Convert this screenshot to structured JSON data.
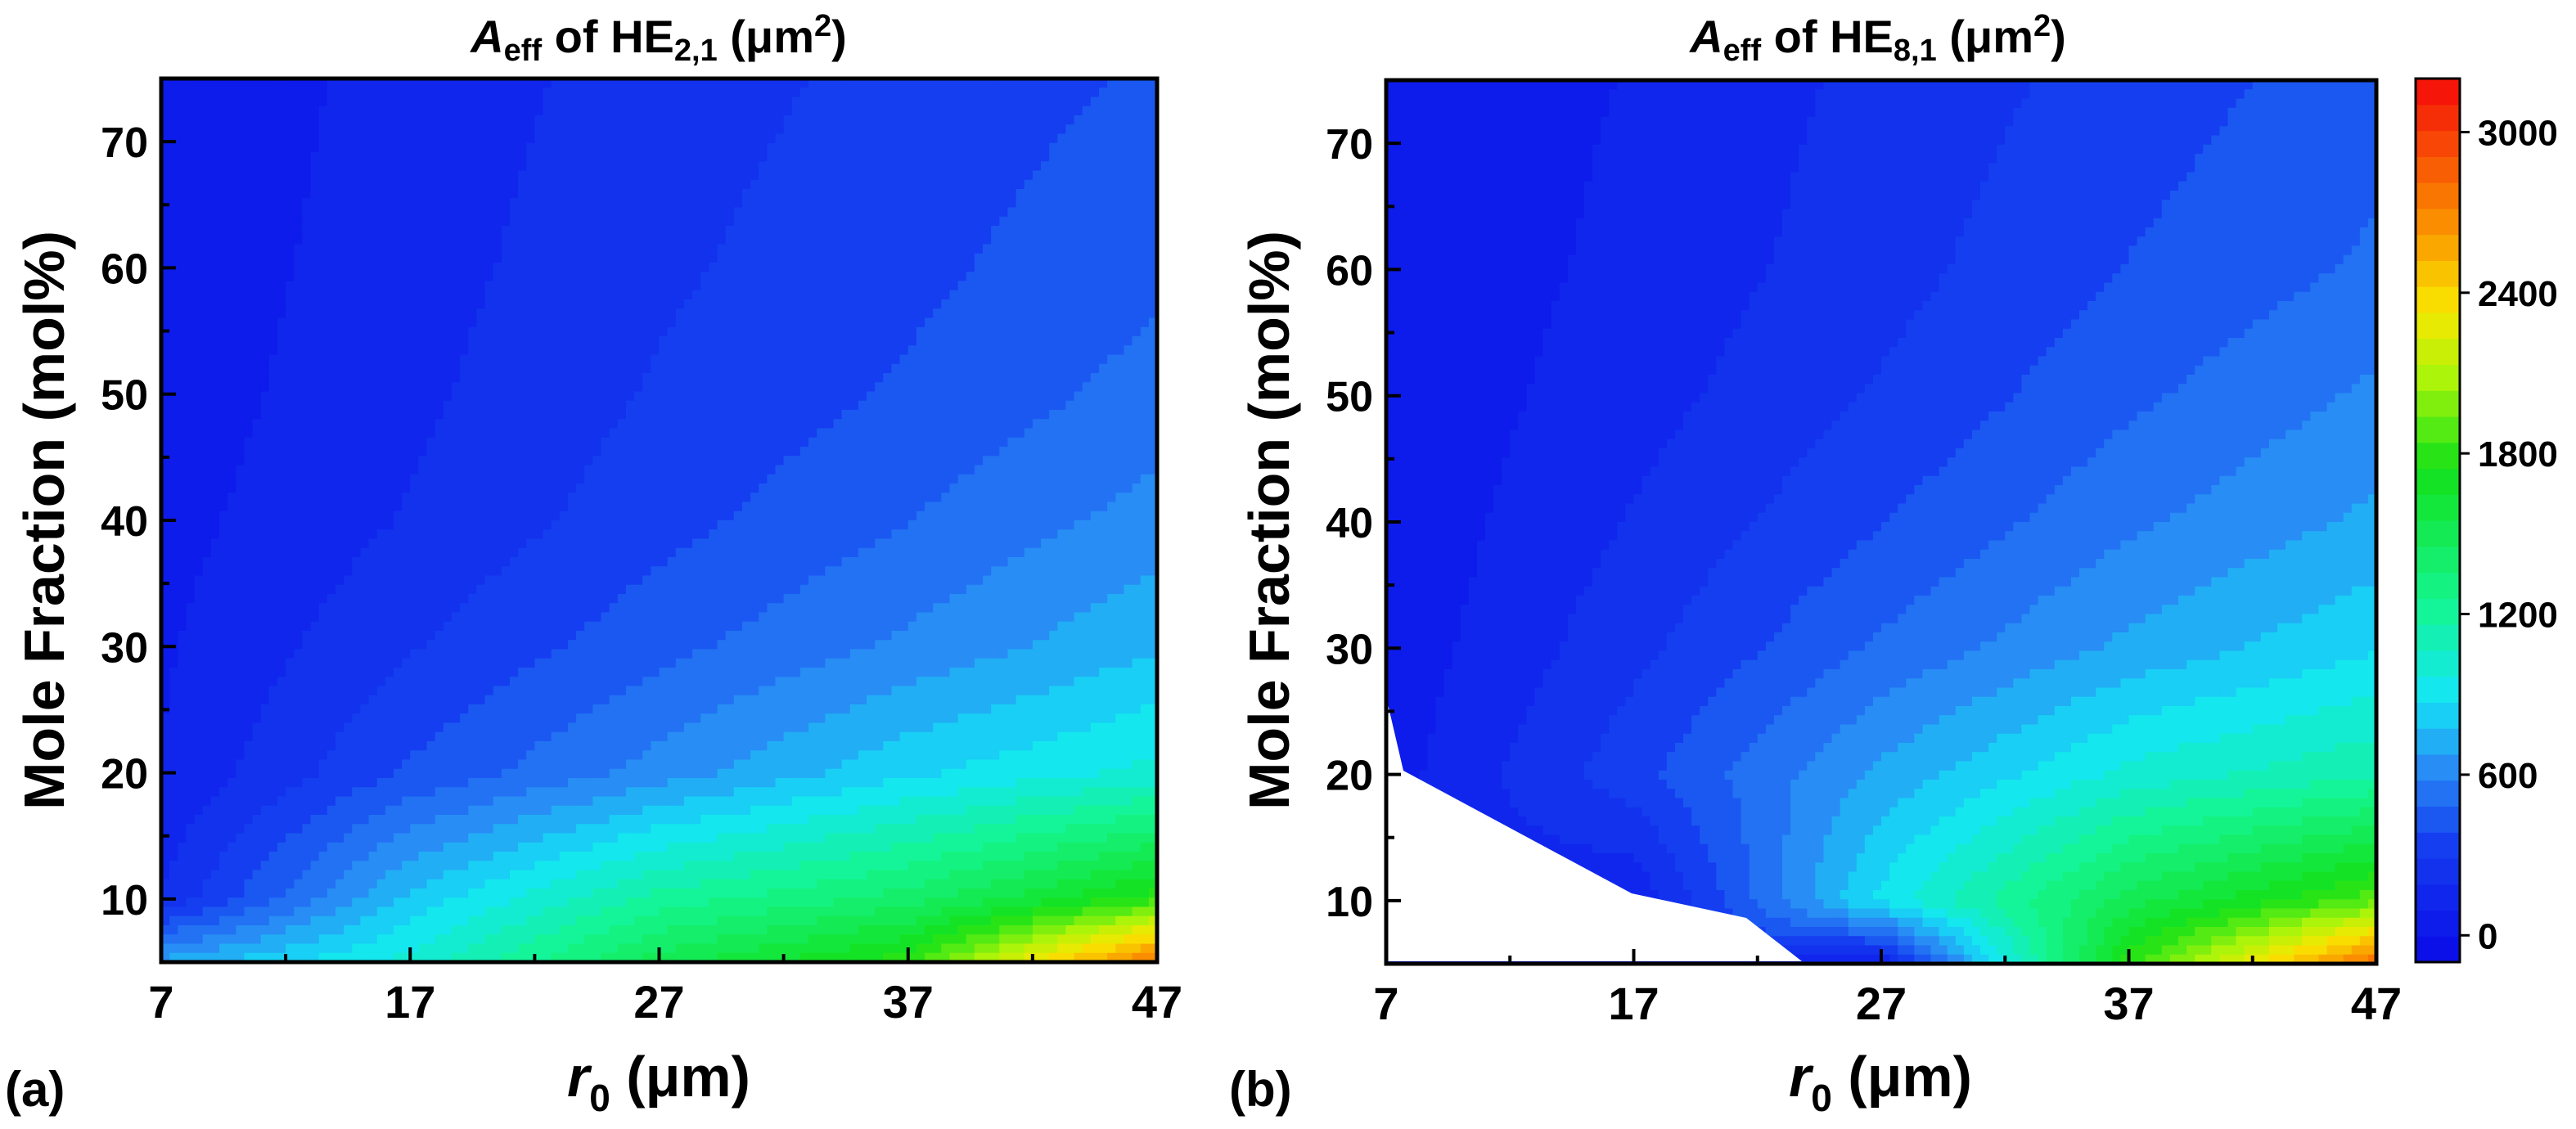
{
  "panels": [
    {
      "id": "a",
      "label": "(a)",
      "title": {
        "italic": "A",
        "sub": "eff",
        "mid": " of HE",
        "mode_sub": "2,1",
        "end": " (μm",
        "sup": "2",
        "close": ")"
      }
    },
    {
      "id": "b",
      "label": "(b)",
      "title": {
        "italic": "A",
        "sub": "eff",
        "mid": " of HE",
        "mode_sub": "8,1",
        "end": " (μm",
        "sup": "2",
        "close": ")"
      }
    }
  ],
  "axes": {
    "xlabel": {
      "italic": "r",
      "sub": "0",
      "rest": " (μm)"
    },
    "ylabel": "Mole Fraction (mol%)",
    "xlim": [
      7,
      47
    ],
    "ylim": [
      5,
      75
    ],
    "xticks": [
      "7",
      "17",
      "27",
      "37",
      "47"
    ],
    "yticks": [
      "10",
      "20",
      "30",
      "40",
      "50",
      "60",
      "70"
    ]
  },
  "colorbar": {
    "range": [
      -100,
      3200
    ],
    "ticks": [
      "0",
      "600",
      "1200",
      "1800",
      "2400",
      "3000"
    ]
  },
  "chart_data": [
    {
      "type": "heatmap",
      "title": "A_eff of HE_2,1 (μm^2)",
      "xlabel": "r_0 (μm)",
      "ylabel": "Mole Fraction (mol%)",
      "xlim": [
        7,
        47
      ],
      "ylim": [
        5,
        75
      ],
      "x": [
        7,
        17,
        27,
        37,
        47
      ],
      "y": [
        5,
        10,
        20,
        30,
        40,
        50,
        60,
        75
      ],
      "z_unit": "μm^2",
      "z": [
        [
          700,
          1000,
          1500,
          1800,
          2800
        ],
        [
          200,
          800,
          1200,
          1400,
          1800
        ],
        [
          100,
          400,
          620,
          850,
          1000
        ],
        [
          80,
          280,
          450,
          600,
          760
        ],
        [
          60,
          200,
          350,
          480,
          620
        ],
        [
          40,
          170,
          300,
          400,
          520
        ],
        [
          30,
          150,
          270,
          360,
          460
        ],
        [
          20,
          130,
          240,
          320,
          400
        ]
      ]
    },
    {
      "type": "heatmap",
      "title": "A_eff of HE_8,1 (μm^2)",
      "xlabel": "r_0 (μm)",
      "ylabel": "Mole Fraction (mol%)",
      "xlim": [
        7,
        47
      ],
      "ylim": [
        5,
        75
      ],
      "x": [
        7,
        17,
        27,
        37,
        47
      ],
      "y": [
        5,
        10,
        20,
        30,
        40,
        50,
        60,
        75
      ],
      "z_unit": "μm^2",
      "note": "blank (no data) region below the lower-left cutoff",
      "z": [
        [
          null,
          null,
          100,
          1800,
          2800
        ],
        [
          null,
          100,
          900,
          1500,
          1900
        ],
        [
          50,
          350,
          700,
          1000,
          1150
        ],
        [
          30,
          260,
          500,
          700,
          860
        ],
        [
          20,
          200,
          380,
          560,
          700
        ],
        [
          20,
          150,
          300,
          460,
          600
        ],
        [
          20,
          120,
          250,
          390,
          500
        ],
        [
          20,
          100,
          220,
          330,
          440
        ]
      ]
    }
  ]
}
